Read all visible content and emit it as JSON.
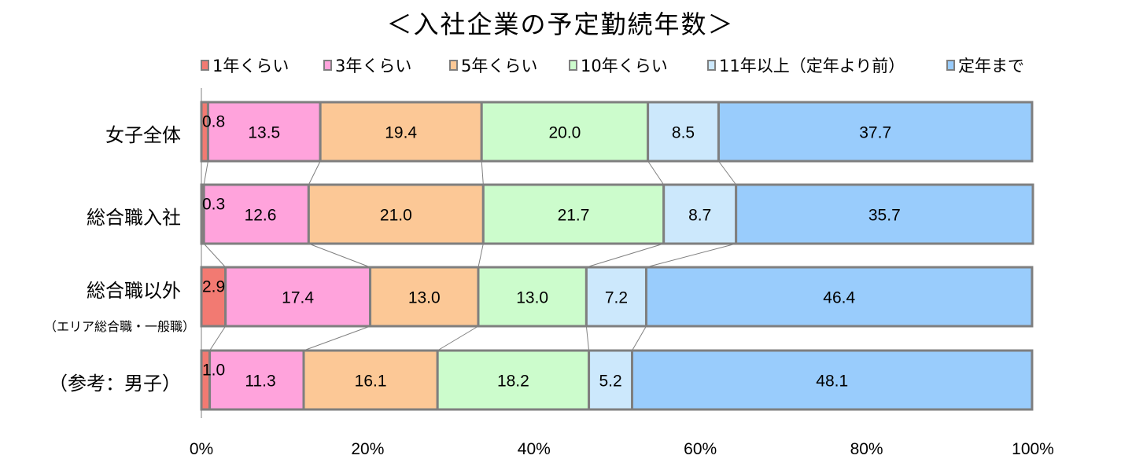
{
  "chart_data": {
    "type": "bar",
    "orientation": "horizontal",
    "stacked": "percent",
    "title": "＜入社企業の予定勤続年数＞",
    "categories": [
      "女子全体",
      "総合職入社",
      "総合職以外",
      "（参考：男子）"
    ],
    "category_sublabels": [
      "",
      "",
      "（エリア総合職・一般職）",
      ""
    ],
    "series": [
      {
        "name": "1年くらい",
        "color": "#f27a72",
        "values": [
          0.8,
          0.3,
          2.9,
          1.0
        ]
      },
      {
        "name": "3年くらい",
        "color": "#ffa3dc",
        "values": [
          13.5,
          12.6,
          17.4,
          11.3
        ]
      },
      {
        "name": "5年くらい",
        "color": "#fcc896",
        "values": [
          19.4,
          21.0,
          13.0,
          16.1
        ]
      },
      {
        "name": "10年くらい",
        "color": "#ccfccc",
        "values": [
          20.0,
          21.7,
          13.0,
          18.2
        ]
      },
      {
        "name": "11年以上（定年より前）",
        "color": "#cce8fc",
        "values": [
          8.5,
          8.7,
          7.2,
          5.2
        ]
      },
      {
        "name": "定年まで",
        "color": "#99ccfc",
        "values": [
          37.7,
          35.7,
          46.4,
          48.1
        ]
      }
    ],
    "xlim": [
      0,
      100
    ],
    "x_ticks": [
      "0%",
      "20%",
      "40%",
      "60%",
      "80%",
      "100%"
    ],
    "legend_position": "top",
    "series_lines": true,
    "grid": false
  }
}
